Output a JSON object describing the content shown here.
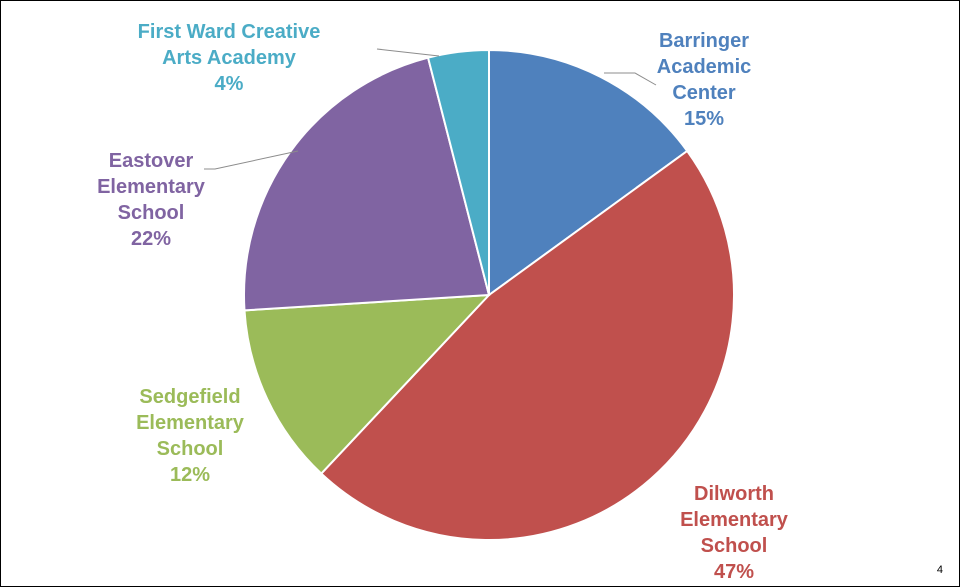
{
  "chart_data": {
    "type": "pie",
    "slices": [
      {
        "label": [
          "Barringer",
          "Academic",
          "Center"
        ],
        "value": 15,
        "display": "15%",
        "color": "#4F81BD"
      },
      {
        "label": [
          "Dilworth",
          "Elementary",
          "School"
        ],
        "value": 47,
        "display": "47%",
        "color": "#C0504D"
      },
      {
        "label": [
          "Sedgefield",
          "Elementary",
          "School"
        ],
        "value": 12,
        "display": "12%",
        "color": "#9BBB59"
      },
      {
        "label": [
          "Eastover",
          "Elementary",
          "School"
        ],
        "value": 22,
        "display": "22%",
        "color": "#8064A2"
      },
      {
        "label": [
          "First Ward Creative",
          "Arts Academy"
        ],
        "value": 4,
        "display": "4%",
        "color": "#4BACC6"
      }
    ]
  },
  "page_number": "4"
}
